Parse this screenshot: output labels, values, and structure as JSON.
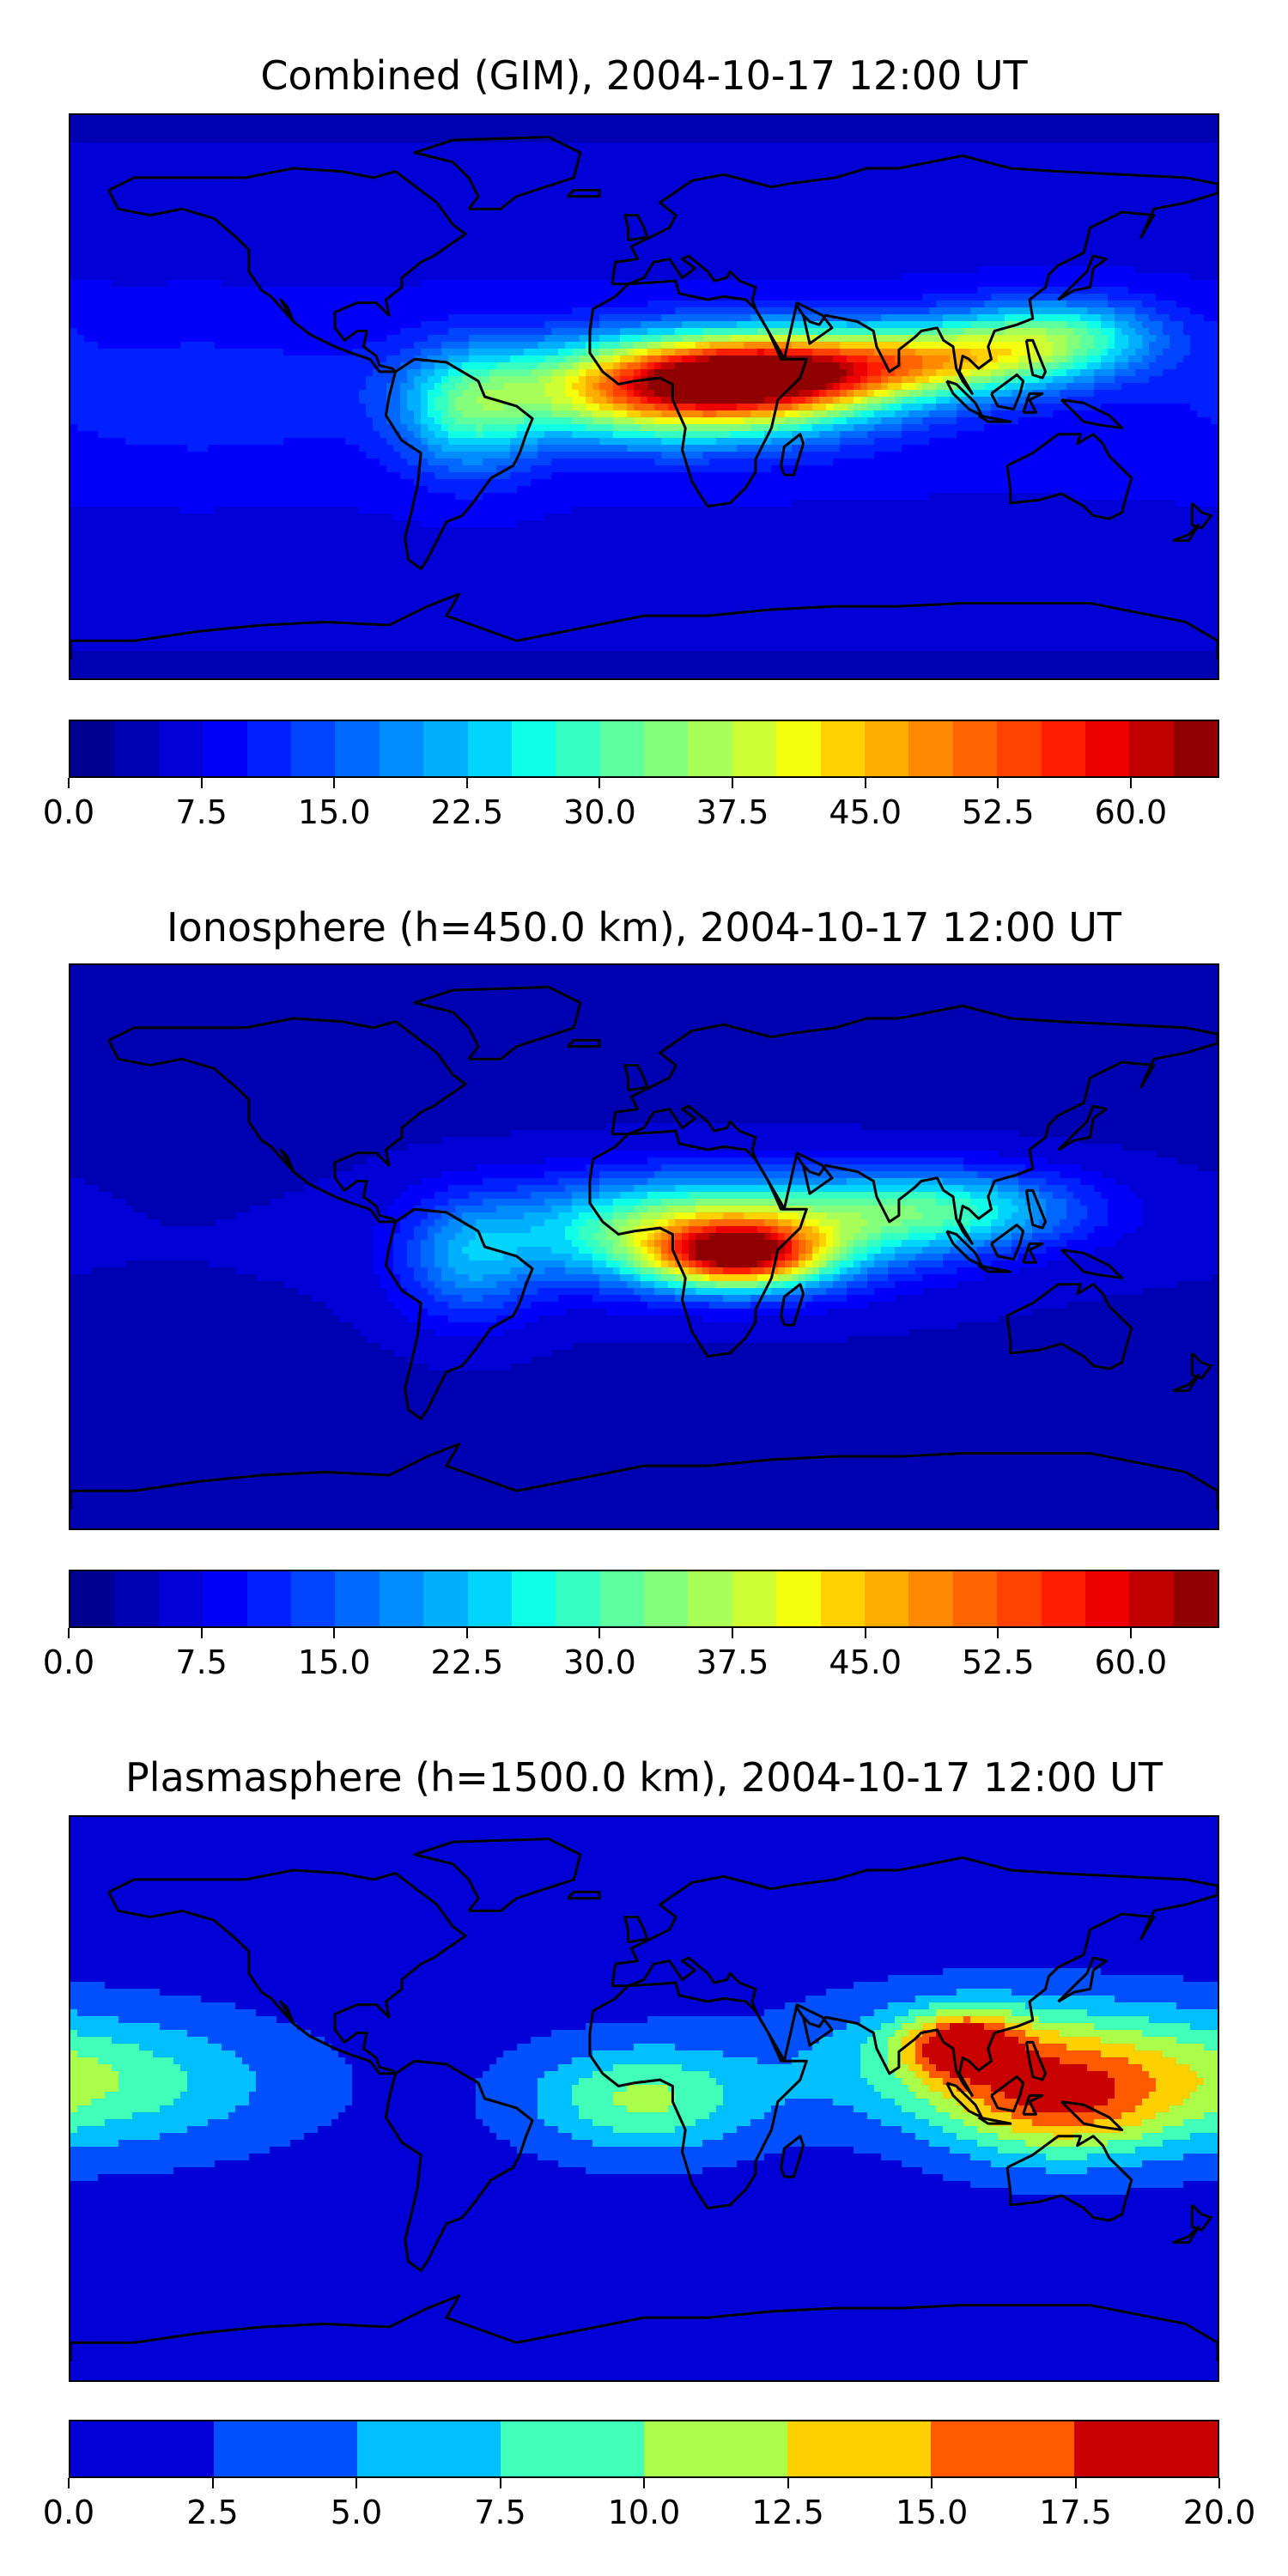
{
  "chart_data": [
    {
      "type": "heatmap",
      "title": "Combined (GIM), 2004-10-17 12:00 UT",
      "colorbar": {
        "min": 0.0,
        "max": 65.0,
        "step": 2.5,
        "tick_labels": [
          "0.0",
          "7.5",
          "15.0",
          "22.5",
          "30.0",
          "37.5",
          "45.0",
          "52.5",
          "60.0"
        ],
        "tick_values": [
          0.0,
          7.5,
          15.0,
          22.5,
          30.0,
          37.5,
          45.0,
          52.5,
          60.0
        ],
        "colors": [
          "#00008f",
          "#0000b3",
          "#0000d6",
          "#0000fa",
          "#0020ff",
          "#0044ff",
          "#0068ff",
          "#008cff",
          "#00b0ff",
          "#00d4ff",
          "#10ffe7",
          "#36ffc3",
          "#5dff9f",
          "#83ff7b",
          "#a8ff57",
          "#cdff33",
          "#f3ff0c",
          "#ffd100",
          "#ffad00",
          "#ff8900",
          "#ff6500",
          "#ff4200",
          "#ff1e00",
          "#ee0000",
          "#c10000",
          "#8f0000"
        ]
      },
      "hotspots": [
        {
          "lon": 10,
          "lat": 2,
          "value": 50,
          "spread_lon": 38,
          "spread_lat": 11
        },
        {
          "lon": 40,
          "lat": 8,
          "value": 46,
          "spread_lon": 30,
          "spread_lat": 9
        },
        {
          "lon": 95,
          "lat": 12,
          "value": 36,
          "spread_lon": 28,
          "spread_lat": 8
        },
        {
          "lon": 130,
          "lat": 20,
          "value": 28,
          "spread_lon": 22,
          "spread_lat": 8
        },
        {
          "lon": -55,
          "lat": -5,
          "value": 25,
          "spread_lon": 15,
          "spread_lat": 14
        },
        {
          "lon": -140,
          "lat": 0,
          "value": 12,
          "spread_lon": 40,
          "spread_lat": 15
        }
      ],
      "background_value": 8
    },
    {
      "type": "heatmap",
      "title": "Ionosphere  (h=450.0 km), 2004-10-17 12:00 UT",
      "colorbar": {
        "min": 0.0,
        "max": 65.0,
        "step": 2.5,
        "tick_labels": [
          "0.0",
          "7.5",
          "15.0",
          "22.5",
          "30.0",
          "37.5",
          "45.0",
          "52.5",
          "60.0"
        ],
        "tick_values": [
          0.0,
          7.5,
          15.0,
          22.5,
          30.0,
          37.5,
          45.0,
          52.5,
          60.0
        ],
        "colors": [
          "#00008f",
          "#0000b3",
          "#0000d6",
          "#0000fa",
          "#0020ff",
          "#0044ff",
          "#0068ff",
          "#008cff",
          "#00b0ff",
          "#00d4ff",
          "#10ffe7",
          "#36ffc3",
          "#5dff9f",
          "#83ff7b",
          "#a8ff57",
          "#cdff33",
          "#f3ff0c",
          "#ffd100",
          "#ffad00",
          "#ff8900",
          "#ff6500",
          "#ff4200",
          "#ff1e00",
          "#ee0000",
          "#c10000",
          "#8f0000"
        ]
      },
      "hotspots": [
        {
          "lon": 20,
          "lat": 5,
          "value": 40,
          "spread_lon": 40,
          "spread_lat": 12
        },
        {
          "lon": 30,
          "lat": -3,
          "value": 44,
          "spread_lon": 18,
          "spread_lat": 7
        },
        {
          "lon": 95,
          "lat": 12,
          "value": 26,
          "spread_lon": 30,
          "spread_lat": 9
        },
        {
          "lon": -55,
          "lat": -5,
          "value": 18,
          "spread_lon": 15,
          "spread_lat": 14
        }
      ],
      "background_value": 5
    },
    {
      "type": "heatmap",
      "title": "Plasmasphere (h=1500.0 km), 2004-10-17 12:00 UT",
      "colorbar": {
        "min": 0.0,
        "max": 20.0,
        "step": 2.5,
        "tick_labels": [
          "0.0",
          "2.5",
          "5.0",
          "7.5",
          "10.0",
          "12.5",
          "15.0",
          "17.5",
          "20.0"
        ],
        "tick_values": [
          0.0,
          2.5,
          5.0,
          7.5,
          10.0,
          12.5,
          15.0,
          17.5,
          20.0
        ],
        "colors": [
          "#0000d6",
          "#0050ff",
          "#00c0ff",
          "#40ffb8",
          "#aaff4c",
          "#ffd000",
          "#ff5a00",
          "#c80000"
        ]
      },
      "hotspots": [
        {
          "lon": 115,
          "lat": 12,
          "value": 12.8,
          "spread_lon": 40,
          "spread_lat": 14
        },
        {
          "lon": 100,
          "lat": 18,
          "value": 13.5,
          "spread_lon": 12,
          "spread_lat": 7
        },
        {
          "lon": 0,
          "lat": 0,
          "value": 10.5,
          "spread_lon": 25,
          "spread_lat": 12
        },
        {
          "lon": -170,
          "lat": 5,
          "value": 8.5,
          "spread_lon": 40,
          "spread_lat": 15
        },
        {
          "lon": 130,
          "lat": -5,
          "value": 10.5,
          "spread_lon": 25,
          "spread_lat": 12
        }
      ],
      "background_value": 1.5
    }
  ],
  "colors": {
    "frame": "#000000",
    "coast": "#000000"
  }
}
